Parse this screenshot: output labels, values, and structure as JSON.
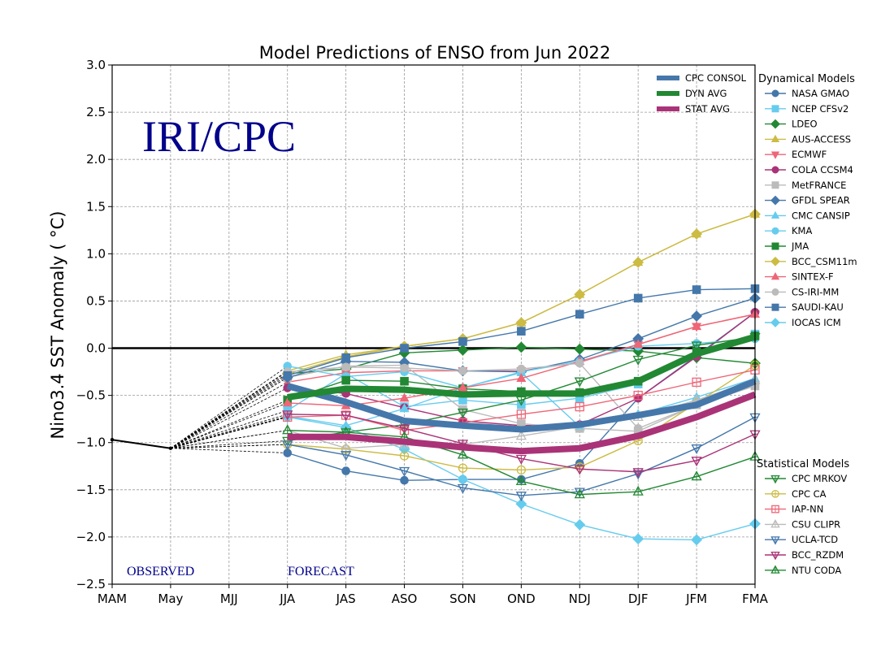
{
  "chart_data": {
    "type": "line",
    "title": "Model Predictions of ENSO from Jun 2022",
    "xlabel": "",
    "ylabel": "Nino3.4 SST Anomaly ( °C)",
    "ylim": [
      -2.5,
      3.0
    ],
    "yticks": [
      "3.0",
      "2.5",
      "2.0",
      "1.5",
      "1.0",
      "0.5",
      "0.0",
      "−0.5",
      "−1.0",
      "−1.5",
      "−2.0",
      "−2.5"
    ],
    "ytick_values": [
      3.0,
      2.5,
      2.0,
      1.5,
      1.0,
      0.5,
      0.0,
      -0.5,
      -1.0,
      -1.5,
      -2.0,
      -2.5
    ],
    "categories": [
      "MAM",
      "May",
      "MJJ",
      "JJA",
      "JAS",
      "ASO",
      "SON",
      "OND",
      "NDJ",
      "DJF",
      "JFM",
      "FMA"
    ],
    "grid": true,
    "zero_line": 0.0,
    "brand_label": "IRI/CPC",
    "observed_label": "OBSERVED",
    "forecast_label": "FORECAST",
    "observed": {
      "categories": [
        "MAM",
        "May"
      ],
      "values": [
        -0.97,
        -1.06
      ],
      "color": "#000000"
    },
    "forecast_start_index": 3,
    "averages": [
      {
        "name": "CPC CONSOL",
        "color": "#4677aa",
        "values": [
          -0.4,
          -0.57,
          -0.77,
          -0.82,
          -0.86,
          -0.81,
          -0.71,
          -0.6,
          -0.35
        ]
      },
      {
        "name": "DYN AVG",
        "color": "#228833",
        "values": [
          -0.52,
          -0.43,
          -0.44,
          -0.49,
          -0.48,
          -0.48,
          -0.35,
          -0.06,
          0.12
        ]
      },
      {
        "name": "STAT AVG",
        "color": "#aa3377",
        "values": [
          -0.94,
          -0.94,
          -0.99,
          -1.05,
          -1.09,
          -1.06,
          -0.93,
          -0.73,
          -0.49
        ]
      }
    ],
    "dynamical_legend_title": "Dynamical Models",
    "dynamical_models": [
      {
        "name": "NASA GMAO",
        "color": "#4477aa",
        "marker": "circle",
        "values": [
          -1.11,
          -1.3,
          -1.4,
          -1.39,
          -1.39,
          -1.22,
          -0.53,
          -0.08,
          0.38
        ]
      },
      {
        "name": "NCEP CFSv2",
        "color": "#66ccee",
        "marker": "square",
        "values": [
          -0.66,
          -0.27,
          -0.62,
          -0.55,
          -0.6,
          -0.53,
          -0.38,
          -0.07,
          0.15
        ]
      },
      {
        "name": "LDEO",
        "color": "#228833",
        "marker": "diamond",
        "values": [
          -0.27,
          -0.22,
          -0.05,
          -0.02,
          0.01,
          -0.01,
          -0.03,
          -0.1,
          -0.16
        ]
      },
      {
        "name": "AUS-ACCESS",
        "color": "#ccbb44",
        "marker": "triangle-up",
        "values": [
          -0.24,
          -0.07,
          0.02,
          0.1,
          0.27,
          0.57,
          0.91,
          1.21,
          1.42
        ]
      },
      {
        "name": "ECMWF",
        "color": "#ee6677",
        "marker": "triangle-down",
        "values": [
          -0.36,
          -0.26,
          -0.24,
          -0.24,
          -0.24,
          -0.15,
          0.04,
          0.23,
          0.36
        ]
      },
      {
        "name": "COLA CCSM4",
        "color": "#aa3377",
        "marker": "circle",
        "values": [
          -0.42,
          -0.48,
          -0.63,
          -0.77,
          -0.82,
          -0.81,
          -0.53,
          -0.09,
          0.38
        ]
      },
      {
        "name": "MetFRANCE",
        "color": "#bbbbbb",
        "marker": "square",
        "values": [
          -0.31,
          -0.19,
          -0.18,
          -0.65,
          -0.8,
          -0.85,
          -0.88,
          -0.6,
          -0.4
        ]
      },
      {
        "name": "GFDL SPEAR",
        "color": "#4477aa",
        "marker": "diamond",
        "values": [
          -0.31,
          -0.14,
          -0.15,
          -0.24,
          -0.25,
          -0.12,
          0.1,
          0.34,
          0.53
        ]
      },
      {
        "name": "CMC CANSIP",
        "color": "#66ccee",
        "marker": "triangle-up",
        "values": [
          -0.72,
          -0.82,
          -0.64,
          -0.42,
          -0.26,
          -0.83,
          -0.7,
          -0.52,
          -0.32
        ]
      },
      {
        "name": "KMA",
        "color": "#66ccee",
        "marker": "circle",
        "values": [
          -0.19,
          -0.3,
          -0.25,
          -0.42,
          -0.25,
          -0.14,
          0.02,
          0.05,
          0.1
        ]
      },
      {
        "name": "JMA",
        "color": "#228833",
        "marker": "square",
        "values": [
          -0.55,
          -0.34,
          -0.35,
          -0.43,
          -0.46,
          -0.47,
          -0.35,
          -0.04,
          0.13
        ]
      },
      {
        "name": "BCC_CSM11m",
        "color": "#ccbb44",
        "marker": "diamond",
        "values": [
          -0.27,
          -0.09,
          0.02,
          0.1,
          0.27,
          0.57,
          0.91,
          1.21,
          1.42
        ]
      },
      {
        "name": "SINTEX-F",
        "color": "#ee6677",
        "marker": "triangle-up",
        "values": [
          -0.58,
          -0.61,
          -0.53,
          -0.42,
          -0.32,
          -0.14,
          0.04,
          0.23,
          0.36
        ]
      },
      {
        "name": "CS-IRI-MM",
        "color": "#bbbbbb",
        "marker": "circle",
        "values": [
          -0.25,
          -0.2,
          -0.21,
          -0.24,
          -0.22,
          -0.16,
          -0.85,
          -0.6,
          -0.4
        ]
      },
      {
        "name": "SAUDI-KAU",
        "color": "#4477aa",
        "marker": "square",
        "values": [
          -0.29,
          -0.1,
          0.0,
          0.07,
          0.18,
          0.36,
          0.53,
          0.62,
          0.63
        ]
      },
      {
        "name": "IOCAS ICM",
        "color": "#66ccee",
        "marker": "diamond",
        "values": [
          -0.73,
          -0.84,
          -1.07,
          -1.39,
          -1.65,
          -1.87,
          -2.02,
          -2.03,
          -1.86
        ]
      }
    ],
    "statistical_legend_title": "Statistical Models",
    "statistical_models": [
      {
        "name": "CPC MRKOV",
        "color": "#228833",
        "marker": "triangle-down-open",
        "values": [
          -0.98,
          -0.89,
          -0.81,
          -0.68,
          -0.55,
          -0.35,
          -0.12,
          0.03,
          0.12
        ]
      },
      {
        "name": "CPC CA",
        "color": "#ccbb44",
        "marker": "circle-open",
        "values": [
          -1.02,
          -1.07,
          -1.14,
          -1.27,
          -1.29,
          -1.26,
          -0.98,
          -0.58,
          -0.18
        ]
      },
      {
        "name": "IAP-NN",
        "color": "#ee6677",
        "marker": "square-open",
        "values": [
          -0.73,
          -0.71,
          -0.87,
          -0.79,
          -0.7,
          -0.62,
          -0.5,
          -0.36,
          -0.23
        ]
      },
      {
        "name": "CSU CLIPR",
        "color": "#bbbbbb",
        "marker": "triangle-up-open",
        "values": [
          -0.87,
          -1.06,
          -1.02,
          -1.02,
          -0.93,
          -0.83,
          -0.73,
          -0.55,
          -0.34
        ]
      },
      {
        "name": "UCLA-TCD",
        "color": "#4477aa",
        "marker": "triangle-down-open",
        "values": [
          -1.02,
          -1.13,
          -1.3,
          -1.48,
          -1.56,
          -1.52,
          -1.33,
          -1.06,
          -0.73
        ]
      },
      {
        "name": "BCC_RZDM",
        "color": "#aa3377",
        "marker": "triangle-down-open",
        "values": [
          -0.7,
          -0.71,
          -0.85,
          -1.01,
          -1.17,
          -1.28,
          -1.31,
          -1.19,
          -0.91
        ]
      },
      {
        "name": "NTU CODA",
        "color": "#228833",
        "marker": "triangle-up-open",
        "values": [
          -0.87,
          -0.89,
          -0.94,
          -1.13,
          -1.41,
          -1.55,
          -1.52,
          -1.36,
          -1.15
        ]
      }
    ]
  }
}
